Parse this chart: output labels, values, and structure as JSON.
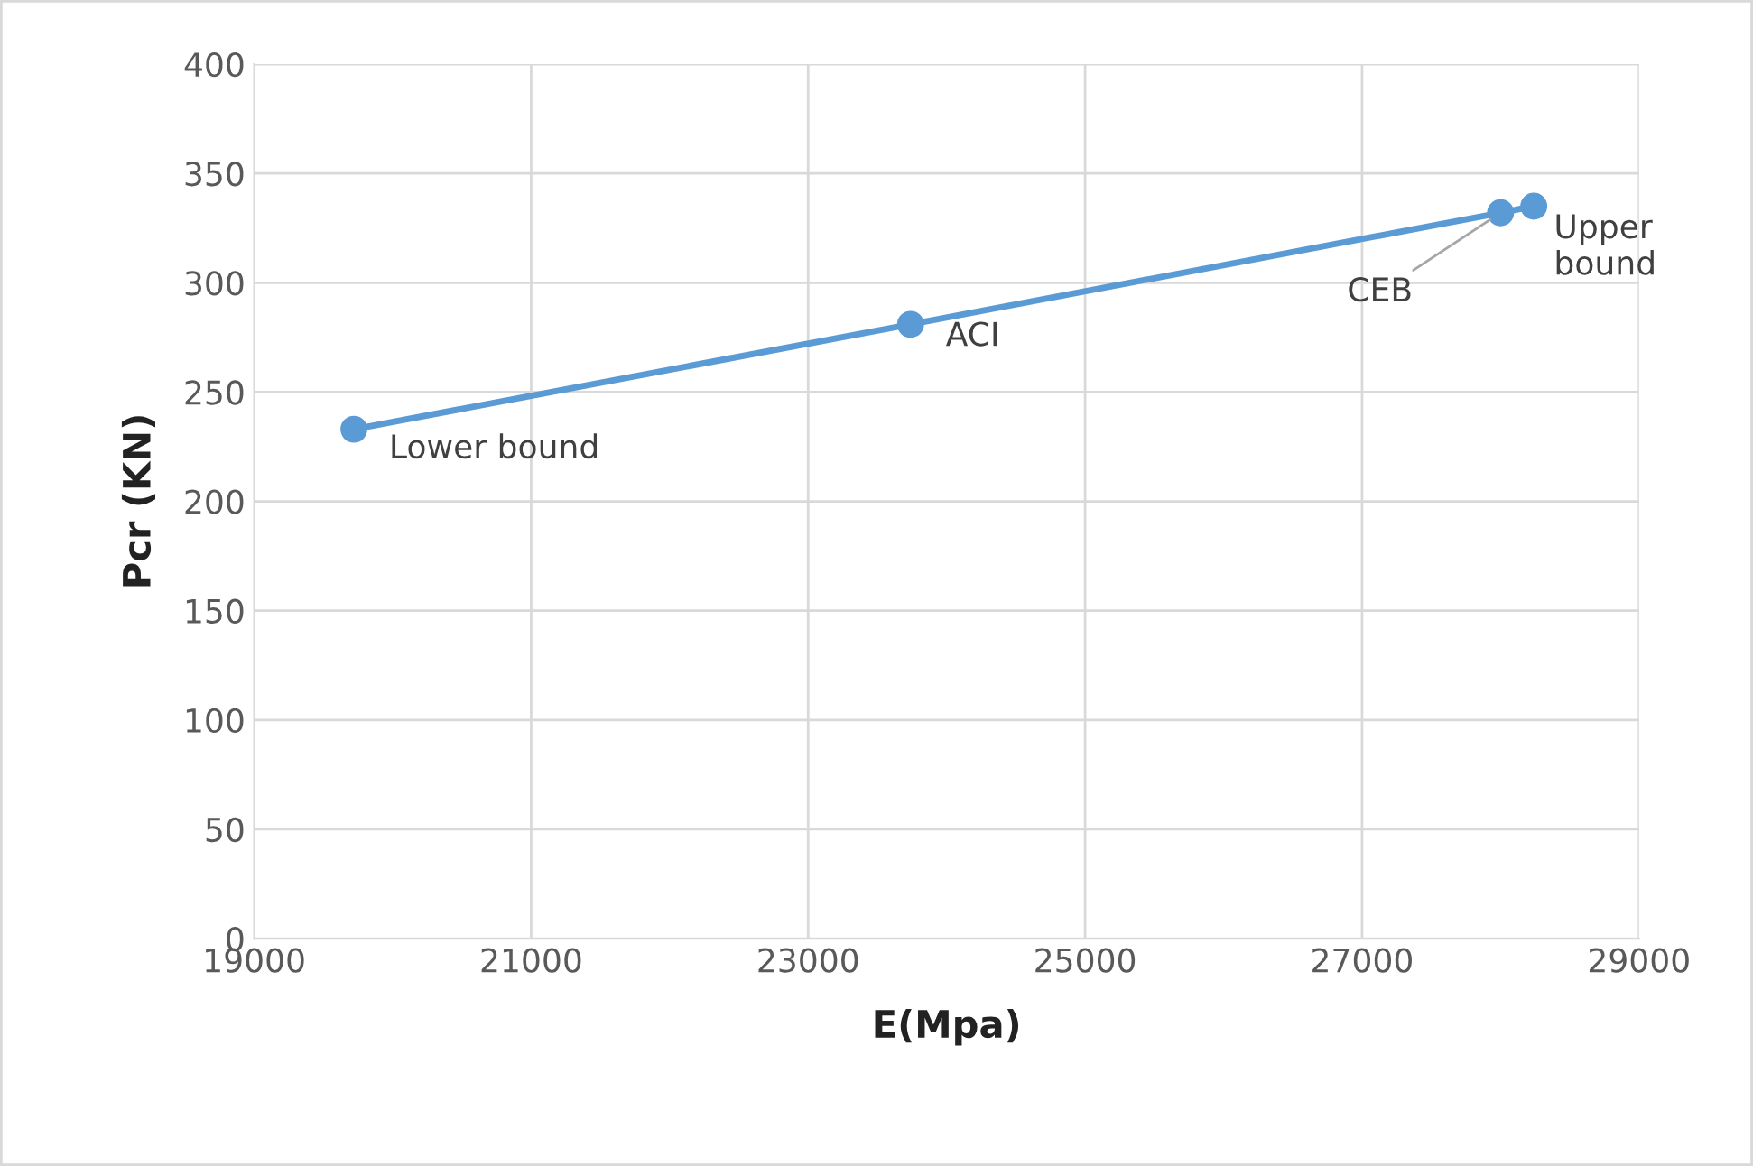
{
  "chart_data": {
    "type": "line",
    "xlabel": "E(Mpa)",
    "ylabel": "Pcr (KN)",
    "x": [
      19720,
      23740,
      28000,
      28240
    ],
    "series": [
      {
        "color": "#5b9bd5",
        "values": [
          233,
          281,
          332,
          335
        ]
      }
    ],
    "xlim": [
      19000,
      29000
    ],
    "xticks": [
      19000,
      21000,
      23000,
      25000,
      27000,
      29000
    ],
    "ylim": [
      0,
      400
    ],
    "yticks": [
      0,
      50,
      100,
      150,
      200,
      250,
      300,
      350,
      400
    ],
    "grid": true,
    "legend": false,
    "marker": "circle",
    "line_style": "solid",
    "annotations": [
      {
        "text": "Lower bound",
        "x": 19720,
        "y": 233
      },
      {
        "text": "ACI",
        "x": 23740,
        "y": 281
      },
      {
        "text": "CEB",
        "x": 28000,
        "y": 332
      },
      {
        "text": "Upper\nbound",
        "x": 28240,
        "y": 335
      }
    ]
  }
}
